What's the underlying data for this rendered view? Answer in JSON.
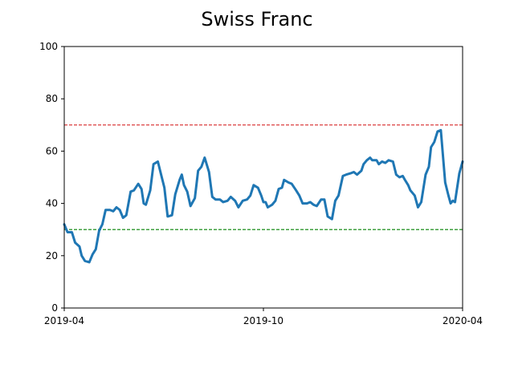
{
  "chart_data": {
    "type": "line",
    "title": "Swiss Franc",
    "xlabel": "",
    "ylabel": "",
    "x_start": "2019-04-01",
    "x_end": "2020-04-01",
    "xlim": [
      "2019-04-01",
      "2020-04-01"
    ],
    "ylim": [
      0,
      100
    ],
    "xticks": [
      "2019-04",
      "2019-10",
      "2020-04"
    ],
    "yticks": [
      "0",
      "20",
      "40",
      "60",
      "80",
      "100"
    ],
    "grid": false,
    "series": [
      {
        "color": "#1f77b4",
        "points": [
          [
            "2019-04-01",
            32
          ],
          [
            "2019-04-04",
            29
          ],
          [
            "2019-04-08",
            29
          ],
          [
            "2019-04-11",
            25
          ],
          [
            "2019-04-15",
            23.5
          ],
          [
            "2019-04-17",
            20
          ],
          [
            "2019-04-20",
            18
          ],
          [
            "2019-04-24",
            17.5
          ],
          [
            "2019-04-27",
            20.5
          ],
          [
            "2019-04-30",
            22.5
          ],
          [
            "2019-05-03",
            29.5
          ],
          [
            "2019-05-06",
            32
          ],
          [
            "2019-05-09",
            37.5
          ],
          [
            "2019-05-13",
            37.5
          ],
          [
            "2019-05-16",
            37
          ],
          [
            "2019-05-19",
            38.5
          ],
          [
            "2019-05-22",
            37.5
          ],
          [
            "2019-05-25",
            34.5
          ],
          [
            "2019-05-28",
            35.5
          ],
          [
            "2019-06-01",
            44.5
          ],
          [
            "2019-06-04",
            45
          ],
          [
            "2019-06-08",
            47.5
          ],
          [
            "2019-06-11",
            45.5
          ],
          [
            "2019-06-13",
            40
          ],
          [
            "2019-06-15",
            39.5
          ],
          [
            "2019-06-19",
            45
          ],
          [
            "2019-06-22",
            55
          ],
          [
            "2019-06-26",
            56
          ],
          [
            "2019-06-29",
            51
          ],
          [
            "2019-07-02",
            46
          ],
          [
            "2019-07-05",
            35
          ],
          [
            "2019-07-09",
            35.5
          ],
          [
            "2019-07-12",
            43.5
          ],
          [
            "2019-07-16",
            49
          ],
          [
            "2019-07-18",
            51
          ],
          [
            "2019-07-20",
            47
          ],
          [
            "2019-07-23",
            44.5
          ],
          [
            "2019-07-26",
            39
          ],
          [
            "2019-07-30",
            42
          ],
          [
            "2019-08-02",
            52.5
          ],
          [
            "2019-08-05",
            54
          ],
          [
            "2019-08-08",
            57.5
          ],
          [
            "2019-08-12",
            52
          ],
          [
            "2019-08-15",
            42.5
          ],
          [
            "2019-08-18",
            41.5
          ],
          [
            "2019-08-22",
            41.5
          ],
          [
            "2019-08-25",
            40.5
          ],
          [
            "2019-08-29",
            41
          ],
          [
            "2019-09-01",
            42.5
          ],
          [
            "2019-09-05",
            41
          ],
          [
            "2019-09-08",
            38.5
          ],
          [
            "2019-09-12",
            41
          ],
          [
            "2019-09-16",
            41.5
          ],
          [
            "2019-09-19",
            43
          ],
          [
            "2019-09-22",
            47
          ],
          [
            "2019-09-26",
            46
          ],
          [
            "2019-09-29",
            43
          ],
          [
            "2019-10-01",
            40.5
          ],
          [
            "2019-10-03",
            40.5
          ],
          [
            "2019-10-05",
            38.5
          ],
          [
            "2019-10-09",
            39.5
          ],
          [
            "2019-10-12",
            41
          ],
          [
            "2019-10-15",
            45.5
          ],
          [
            "2019-10-18",
            46
          ],
          [
            "2019-10-20",
            49
          ],
          [
            "2019-10-24",
            48
          ],
          [
            "2019-10-27",
            47.5
          ],
          [
            "2019-10-31",
            45
          ],
          [
            "2019-11-03",
            43
          ],
          [
            "2019-11-06",
            40
          ],
          [
            "2019-11-10",
            40
          ],
          [
            "2019-11-13",
            40.5
          ],
          [
            "2019-11-16",
            39.5
          ],
          [
            "2019-11-19",
            39
          ],
          [
            "2019-11-23",
            41.5
          ],
          [
            "2019-11-26",
            41.5
          ],
          [
            "2019-11-29",
            35
          ],
          [
            "2019-12-03",
            34
          ],
          [
            "2019-12-06",
            41
          ],
          [
            "2019-12-09",
            43
          ],
          [
            "2019-12-13",
            50.5
          ],
          [
            "2019-12-16",
            51
          ],
          [
            "2019-12-20",
            51.5
          ],
          [
            "2019-12-23",
            52
          ],
          [
            "2019-12-26",
            51
          ],
          [
            "2019-12-30",
            52.5
          ],
          [
            "2020-01-01",
            55
          ],
          [
            "2020-01-04",
            56.5
          ],
          [
            "2020-01-07",
            57.5
          ],
          [
            "2020-01-09",
            56.5
          ],
          [
            "2020-01-13",
            56.5
          ],
          [
            "2020-01-15",
            55
          ],
          [
            "2020-01-18",
            56
          ],
          [
            "2020-01-21",
            55.5
          ],
          [
            "2020-01-24",
            56.5
          ],
          [
            "2020-01-28",
            56
          ],
          [
            "2020-01-31",
            51
          ],
          [
            "2020-02-03",
            50
          ],
          [
            "2020-02-06",
            50.5
          ],
          [
            "2020-02-08",
            49
          ],
          [
            "2020-02-11",
            47
          ],
          [
            "2020-02-13",
            45
          ],
          [
            "2020-02-17",
            43
          ],
          [
            "2020-02-20",
            38.5
          ],
          [
            "2020-02-23",
            40.5
          ],
          [
            "2020-02-27",
            51
          ],
          [
            "2020-03-01",
            54
          ],
          [
            "2020-03-03",
            61.5
          ],
          [
            "2020-03-06",
            63.5
          ],
          [
            "2020-03-09",
            67.5
          ],
          [
            "2020-03-12",
            68
          ],
          [
            "2020-03-16",
            48
          ],
          [
            "2020-03-19",
            43
          ],
          [
            "2020-03-21",
            40
          ],
          [
            "2020-03-23",
            41
          ],
          [
            "2020-03-25",
            40.5
          ],
          [
            "2020-03-29",
            51.5
          ],
          [
            "2020-04-01",
            56
          ]
        ]
      }
    ],
    "reference_lines": [
      {
        "y": 70,
        "color": "#d62728",
        "style": "dashed"
      },
      {
        "y": 30,
        "color": "#008000",
        "style": "dashed"
      }
    ]
  }
}
